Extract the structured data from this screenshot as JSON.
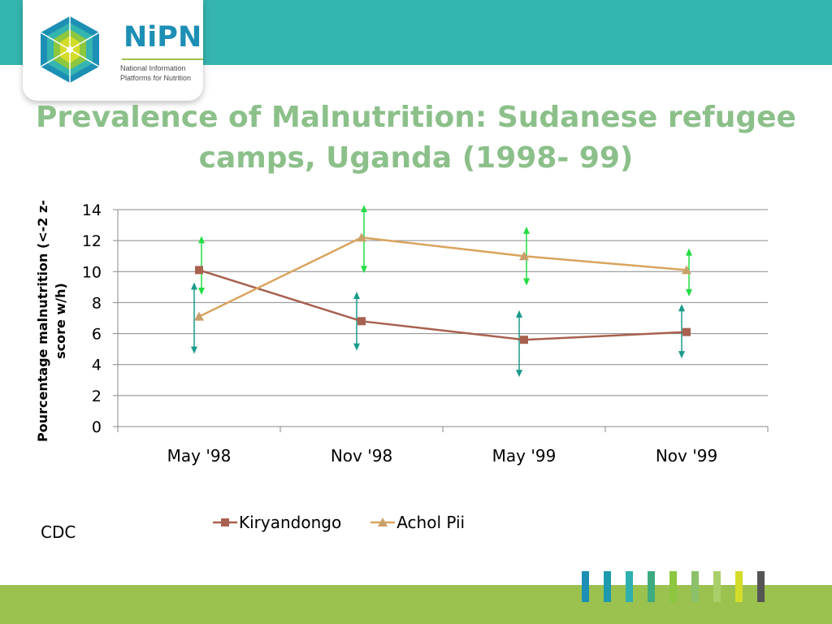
{
  "logo": {
    "name": "NiPN",
    "subtitle_line1": "National Information",
    "subtitle_line2": "Platforms for Nutrition"
  },
  "title_line1": "Prevalence of Malnutrition: Sudanese refugee",
  "title_line2": "camps, Uganda (1998- 99)",
  "source": "CDC",
  "colors": {
    "header_teal": "#35b5b0",
    "footer_green": "#9bc14f",
    "title": "#8cc08a",
    "kiryandongo": "#a8614f",
    "achol_pii": "#d9a45e",
    "error_bar_green": "#22dd44",
    "error_bar_teal": "#1a9a8a",
    "stripes": [
      "#1d8fb4",
      "#1d9aad",
      "#2fb0b0",
      "#3dab7e",
      "#8dc63f",
      "#8cc06a",
      "#a9cf6a",
      "#d4dc2a",
      "#555555"
    ]
  },
  "chart_data": {
    "type": "line",
    "title": "",
    "xlabel": "",
    "ylabel_line1": "Pourcentage malnutrition (<-2 z-",
    "ylabel_line2": "score w/h)",
    "categories": [
      "May '98",
      "Nov '98",
      "May '99",
      "Nov '99"
    ],
    "ylim": [
      0,
      14
    ],
    "yticks": [
      0,
      2,
      4,
      6,
      8,
      10,
      12,
      14
    ],
    "grid": true,
    "series": [
      {
        "name": "Kiryandongo",
        "values": [
          10.1,
          6.8,
          5.6,
          6.1
        ],
        "error_low": [
          4.8,
          5.0,
          3.3,
          4.5
        ],
        "error_high": [
          9.2,
          8.6,
          7.4,
          7.8
        ],
        "color_key": "kiryandongo",
        "error_color_key": "error_bar_teal",
        "marker": "square"
      },
      {
        "name": "Achol Pii",
        "values": [
          7.1,
          12.2,
          11.0,
          10.1
        ],
        "error_low": [
          8.6,
          10.0,
          9.2,
          8.5
        ],
        "error_high": [
          12.2,
          14.2,
          12.8,
          11.4
        ],
        "color_key": "achol_pii",
        "error_color_key": "error_bar_green",
        "marker": "triangle"
      }
    ],
    "legend_position": "bottom"
  }
}
